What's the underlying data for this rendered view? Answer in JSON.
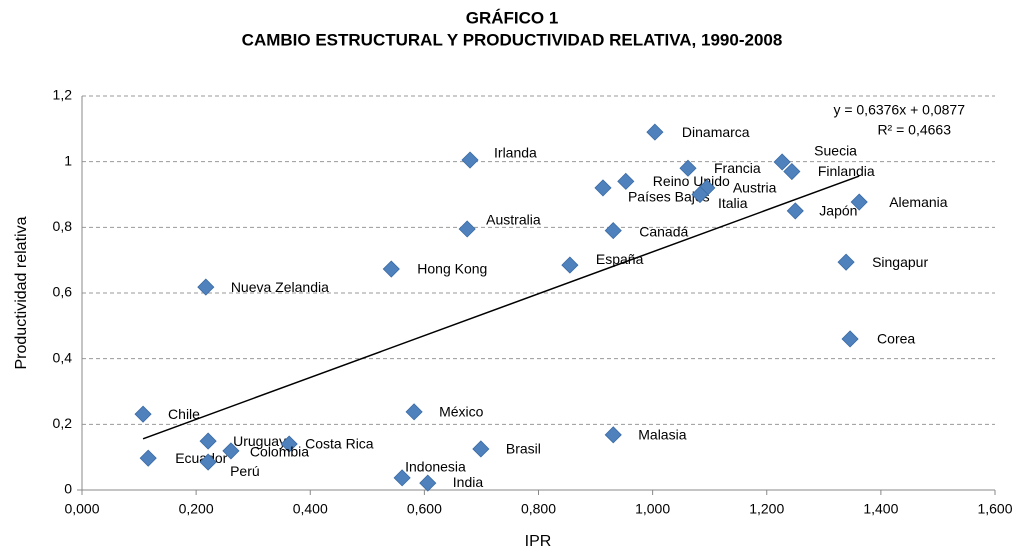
{
  "chart_data": {
    "type": "scatter",
    "title": "GRÁFICO 1",
    "subtitle": "CAMBIO ESTRUCTURAL Y PRODUCTIVIDAD RELATIVA, 1990-2008",
    "x_label": "IPR",
    "y_label": "Productividad relativa",
    "color": "#4f81bd",
    "grid": true,
    "xlim": [
      0,
      1.6
    ],
    "ylim": [
      0,
      1.2
    ],
    "xticks": [
      {
        "value": 0,
        "label": "0,000"
      },
      {
        "value": 0.2,
        "label": "0,200"
      },
      {
        "value": 0.4,
        "label": "0,400"
      },
      {
        "value": 0.6,
        "label": "0,600"
      },
      {
        "value": 0.8,
        "label": "0,800"
      },
      {
        "value": 1,
        "label": "1,000"
      },
      {
        "value": 1.2,
        "label": "1,200"
      },
      {
        "value": 1.4,
        "label": "1,400"
      },
      {
        "value": 1.6,
        "label": "1,600"
      }
    ],
    "yticks": [
      0,
      {
        "value": 0.2,
        "label": "0,2"
      },
      {
        "value": 0.4,
        "label": "0,4"
      },
      {
        "value": 0.6,
        "label": "0,6"
      },
      {
        "value": 0.8,
        "label": "0,8"
      },
      1,
      {
        "value": 1.2,
        "label": "1,2"
      }
    ],
    "labels": [
      "Dinamarca",
      "Irlanda",
      "Suecia",
      "Finlandia",
      "Francia",
      "Reino Unido",
      "Países Bajos",
      "Austria",
      "Italia",
      "Alemania",
      "Japón",
      "Australia",
      "Canadá",
      "Hong Kong",
      "España",
      "Singapur",
      "Nueva Zelandia",
      "Corea",
      "Chile",
      "México",
      "Malasia",
      "Uruguay",
      "Costa Rica",
      "Colombia",
      "Brasil",
      "Ecuador",
      "Perú",
      "Indonesia",
      "India"
    ],
    "x": [
      1.004,
      0.68,
      1.227,
      1.244,
      1.062,
      0.953,
      0.913,
      1.095,
      1.083,
      1.362,
      1.25,
      0.675,
      0.931,
      0.542,
      0.855,
      1.339,
      0.217,
      1.346,
      0.107,
      0.582,
      0.931,
      0.221,
      0.363,
      0.261,
      0.699,
      0.116,
      0.221,
      0.561,
      0.606
    ],
    "values": [
      1.09,
      1.005,
      0.999,
      0.97,
      0.98,
      0.94,
      0.92,
      0.92,
      0.9,
      0.877,
      0.85,
      0.795,
      0.79,
      0.673,
      0.685,
      0.694,
      0.618,
      0.46,
      0.231,
      0.238,
      0.168,
      0.149,
      0.14,
      0.119,
      0.125,
      0.097,
      0.085,
      0.037,
      0.021
    ],
    "trendline": {
      "slope": 0.6376,
      "intercept": 0.0877,
      "equation_label": "y = 0,6376x + 0,0877",
      "r2_label": "R² = 0,4663"
    }
  }
}
